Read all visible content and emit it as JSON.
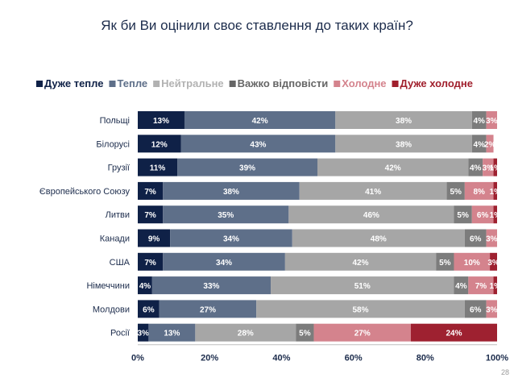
{
  "slide": {
    "title": "Як би Ви оцінили своє ставлення до таких країн?",
    "page_number": "28"
  },
  "chart_data": {
    "type": "bar",
    "orientation": "horizontal",
    "stacked": "percent",
    "title": "Як би Ви оцінили своє ставлення до таких країн?",
    "legend_position": "top",
    "categories": [
      "Польщі",
      "Білорусі",
      "Грузії",
      "Європейського Союзу",
      "Литви",
      "Канади",
      "США",
      "Німеччини",
      "Молдови",
      "Росії"
    ],
    "series": [
      {
        "name": "Дуже тепле",
        "color": "#0f2147",
        "legend_color": "#0f2147",
        "label_color": "#ffffff",
        "values": [
          13,
          12,
          11,
          7,
          7,
          9,
          7,
          4,
          6,
          3
        ],
        "labels": [
          "13%",
          "12%",
          "11%",
          "7%",
          "7%",
          "9%",
          "7%",
          "4%",
          "6%",
          "3%"
        ]
      },
      {
        "name": "Тепле",
        "color": "#5e6f89",
        "legend_color": "#5e6f89",
        "label_color": "#ffffff",
        "values": [
          42,
          43,
          39,
          38,
          35,
          34,
          34,
          33,
          27,
          13
        ],
        "labels": [
          "42%",
          "43%",
          "39%",
          "38%",
          "35%",
          "34%",
          "34%",
          "33%",
          "27%",
          "13%"
        ]
      },
      {
        "name": "Нейтральне",
        "color": "#a6a6a6",
        "legend_color": "#b2b2b2",
        "label_color": "#ffffff",
        "values": [
          38,
          38,
          42,
          41,
          46,
          48,
          42,
          51,
          58,
          28
        ],
        "labels": [
          "38%",
          "38%",
          "42%",
          "41%",
          "46%",
          "48%",
          "42%",
          "51%",
          "58%",
          "28%"
        ]
      },
      {
        "name": "Важко відповісти",
        "color": "#7c7c7c",
        "legend_color": "#666666",
        "label_color": "#ffffff",
        "values": [
          4,
          4,
          4,
          5,
          5,
          6,
          5,
          4,
          6,
          5
        ],
        "labels": [
          "4%",
          "4%",
          "4%",
          "5%",
          "5%",
          "6%",
          "5%",
          "4%",
          "6%",
          "5%"
        ]
      },
      {
        "name": "Холодне",
        "color": "#d4838d",
        "legend_color": "#d4838d",
        "label_color": "#ffffff",
        "values": [
          3,
          2,
          3,
          8,
          6,
          3,
          10,
          7,
          3,
          27
        ],
        "labels": [
          "3%",
          "2%",
          "3%",
          "8%",
          "6%",
          "3%",
          "10%",
          "7%",
          "3%",
          "27%"
        ]
      },
      {
        "name": "Дуже холодне",
        "color": "#9e2130",
        "legend_color": "#a01f2c",
        "label_color": "#ffffff",
        "values": [
          0,
          0,
          1,
          1,
          1,
          0,
          3,
          1,
          0,
          24
        ],
        "labels": [
          "",
          "",
          "1%",
          "1%",
          "1%",
          "",
          "3%",
          "1%",
          "",
          "24%"
        ]
      }
    ],
    "x_axis": {
      "range": [
        0,
        100
      ],
      "ticks": [
        "0%",
        "20%",
        "40%",
        "60%",
        "80%",
        "100%"
      ]
    },
    "grid": false
  }
}
